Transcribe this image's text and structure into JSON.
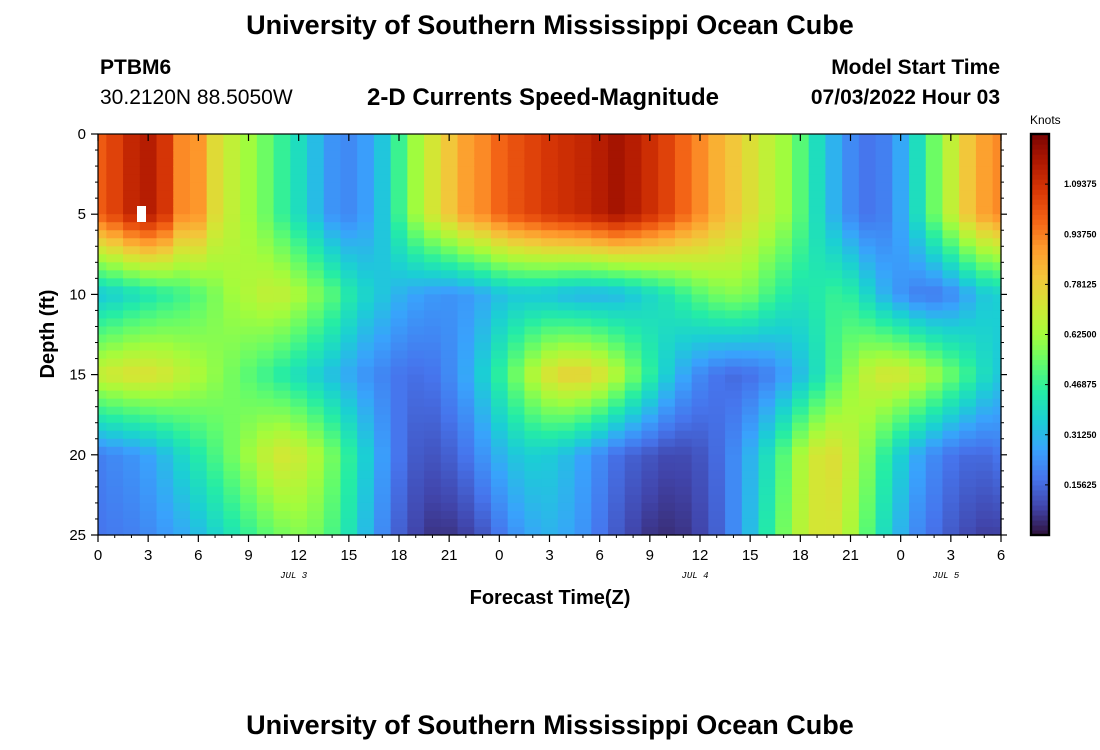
{
  "header": {
    "title": "University of Southern Mississippi Ocean Cube",
    "station_id": "PTBM6",
    "coords": "30.2120N  88.5050W",
    "plot_title": "2-D Currents Speed-Magnitude",
    "start_label": "Model Start Time",
    "start_value": "07/03/2022 Hour 03"
  },
  "footer": {
    "title": "University of Southern Mississippi Ocean Cube"
  },
  "colorbar": {
    "units": "Knots",
    "range": [
      0,
      1.25
    ],
    "ticks": [
      {
        "value": 0.15625,
        "label": "0.15625"
      },
      {
        "value": 0.3125,
        "label": "0.31250"
      },
      {
        "value": 0.46875,
        "label": "0.46875"
      },
      {
        "value": 0.625,
        "label": "0.62500"
      },
      {
        "value": 0.78125,
        "label": "0.78125"
      },
      {
        "value": 0.9375,
        "label": "0.93750"
      },
      {
        "value": 1.09375,
        "label": "1.09375"
      }
    ],
    "colormap": [
      "#30123b",
      "#4145ab",
      "#4675ed",
      "#39a2fc",
      "#1bcfd4",
      "#24eca6",
      "#61fc6c",
      "#a4fc3b",
      "#d1e834",
      "#f3c63a",
      "#fe9b2d",
      "#f36315",
      "#d93806",
      "#b11901",
      "#7a0403"
    ]
  },
  "chart_data": {
    "type": "heatmap",
    "title": "2-D Currents Speed-Magnitude",
    "xlabel": "Forecast Time(Z)",
    "ylabel": "Depth (ft)",
    "x_range_hours": [
      0,
      54
    ],
    "y_range_ft": [
      0,
      25
    ],
    "x_ticks": [
      {
        "hour": 0,
        "label": "0"
      },
      {
        "hour": 3,
        "label": "3"
      },
      {
        "hour": 6,
        "label": "6"
      },
      {
        "hour": 9,
        "label": "9"
      },
      {
        "hour": 12,
        "label": "12"
      },
      {
        "hour": 15,
        "label": "15"
      },
      {
        "hour": 18,
        "label": "18"
      },
      {
        "hour": 21,
        "label": "21"
      },
      {
        "hour": 24,
        "label": "0"
      },
      {
        "hour": 27,
        "label": "3"
      },
      {
        "hour": 30,
        "label": "6"
      },
      {
        "hour": 33,
        "label": "9"
      },
      {
        "hour": 36,
        "label": "12"
      },
      {
        "hour": 39,
        "label": "15"
      },
      {
        "hour": 42,
        "label": "18"
      },
      {
        "hour": 45,
        "label": "21"
      },
      {
        "hour": 48,
        "label": "0"
      },
      {
        "hour": 51,
        "label": "3"
      },
      {
        "hour": 54,
        "label": "6"
      }
    ],
    "y_ticks": [
      {
        "ft": 0,
        "label": "0"
      },
      {
        "ft": 5,
        "label": "5"
      },
      {
        "ft": 10,
        "label": "10"
      },
      {
        "ft": 15,
        "label": "15"
      },
      {
        "ft": 20,
        "label": "20"
      },
      {
        "ft": 25,
        "label": "25"
      }
    ],
    "date_labels": [
      {
        "hour": 12,
        "label": "JUL 3"
      },
      {
        "hour": 36,
        "label": "JUL 4"
      },
      {
        "hour": 51,
        "label": "JUL 5"
      }
    ],
    "depth_profile_ft": [
      0,
      5,
      10,
      15,
      20,
      25
    ],
    "hours": [
      0,
      1,
      2,
      3,
      4,
      5,
      6,
      7,
      8,
      9,
      10,
      11,
      12,
      13,
      14,
      15,
      16,
      17,
      18,
      19,
      20,
      21,
      22,
      23,
      24,
      25,
      26,
      27,
      28,
      29,
      30,
      31,
      32,
      33,
      34,
      35,
      36,
      37,
      38,
      39,
      40,
      41,
      42,
      43,
      44,
      45,
      46,
      47,
      48,
      49,
      50,
      51,
      52,
      53,
      54
    ],
    "values_knots": [
      [
        1.0,
        1.05,
        1.12,
        1.15,
        1.08,
        0.92,
        0.9,
        0.75,
        0.68,
        0.62,
        0.55,
        0.47,
        0.4,
        0.32,
        0.24,
        0.22,
        0.26,
        0.34,
        0.48,
        0.62,
        0.72,
        0.8,
        0.88,
        0.92,
        0.98,
        1.02,
        1.05,
        1.08,
        1.1,
        1.12,
        1.15,
        1.18,
        1.15,
        1.1,
        1.05,
        0.98,
        0.92,
        0.85,
        0.8,
        0.74,
        0.68,
        0.62,
        0.52,
        0.4,
        0.3,
        0.22,
        0.18,
        0.2,
        0.28,
        0.4,
        0.55,
        0.68,
        0.8,
        0.88,
        0.92
      ],
      [
        1.0,
        1.05,
        1.12,
        1.15,
        1.08,
        0.92,
        0.9,
        0.75,
        0.68,
        0.62,
        0.55,
        0.47,
        0.4,
        0.32,
        0.24,
        0.22,
        0.26,
        0.34,
        0.48,
        0.62,
        0.72,
        0.8,
        0.88,
        0.92,
        0.98,
        1.02,
        1.05,
        1.08,
        1.1,
        1.12,
        1.15,
        1.18,
        1.15,
        1.1,
        1.05,
        0.98,
        0.92,
        0.85,
        0.8,
        0.74,
        0.68,
        0.62,
        0.52,
        0.4,
        0.3,
        0.22,
        0.18,
        0.2,
        0.28,
        0.4,
        0.55,
        0.68,
        0.8,
        0.88,
        0.92
      ],
      [
        0.34,
        0.36,
        0.39,
        0.42,
        0.45,
        0.48,
        0.52,
        0.57,
        0.62,
        0.65,
        0.68,
        0.68,
        0.64,
        0.58,
        0.52,
        0.44,
        0.38,
        0.34,
        0.3,
        0.27,
        0.25,
        0.24,
        0.25,
        0.28,
        0.32,
        0.34,
        0.34,
        0.33,
        0.31,
        0.3,
        0.3,
        0.31,
        0.34,
        0.38,
        0.42,
        0.47,
        0.52,
        0.56,
        0.58,
        0.56,
        0.5,
        0.45,
        0.42,
        0.44,
        0.47,
        0.45,
        0.38,
        0.3,
        0.24,
        0.2,
        0.19,
        0.22,
        0.28,
        0.34,
        0.36
      ],
      [
        0.7,
        0.72,
        0.74,
        0.74,
        0.72,
        0.68,
        0.64,
        0.6,
        0.56,
        0.52,
        0.48,
        0.44,
        0.4,
        0.36,
        0.32,
        0.28,
        0.24,
        0.21,
        0.18,
        0.17,
        0.18,
        0.22,
        0.28,
        0.36,
        0.46,
        0.56,
        0.66,
        0.74,
        0.78,
        0.78,
        0.74,
        0.66,
        0.56,
        0.46,
        0.36,
        0.28,
        0.22,
        0.18,
        0.16,
        0.17,
        0.2,
        0.25,
        0.32,
        0.4,
        0.5,
        0.6,
        0.68,
        0.72,
        0.72,
        0.68,
        0.62,
        0.55,
        0.48,
        0.4,
        0.35
      ],
      [
        0.2,
        0.22,
        0.24,
        0.27,
        0.32,
        0.38,
        0.44,
        0.5,
        0.56,
        0.62,
        0.68,
        0.72,
        0.7,
        0.64,
        0.56,
        0.46,
        0.36,
        0.26,
        0.18,
        0.13,
        0.12,
        0.14,
        0.18,
        0.24,
        0.3,
        0.34,
        0.36,
        0.35,
        0.32,
        0.27,
        0.22,
        0.17,
        0.14,
        0.12,
        0.1,
        0.1,
        0.12,
        0.16,
        0.22,
        0.3,
        0.4,
        0.52,
        0.64,
        0.72,
        0.74,
        0.68,
        0.58,
        0.46,
        0.36,
        0.28,
        0.22,
        0.18,
        0.16,
        0.16,
        0.18
      ],
      [
        0.18,
        0.19,
        0.2,
        0.22,
        0.25,
        0.28,
        0.32,
        0.37,
        0.42,
        0.47,
        0.52,
        0.56,
        0.58,
        0.56,
        0.5,
        0.42,
        0.32,
        0.22,
        0.14,
        0.09,
        0.06,
        0.06,
        0.08,
        0.12,
        0.18,
        0.24,
        0.28,
        0.3,
        0.28,
        0.24,
        0.18,
        0.13,
        0.09,
        0.06,
        0.05,
        0.06,
        0.09,
        0.14,
        0.22,
        0.32,
        0.44,
        0.56,
        0.66,
        0.72,
        0.72,
        0.64,
        0.52,
        0.4,
        0.3,
        0.22,
        0.17,
        0.13,
        0.1,
        0.08,
        0.08
      ]
    ]
  }
}
